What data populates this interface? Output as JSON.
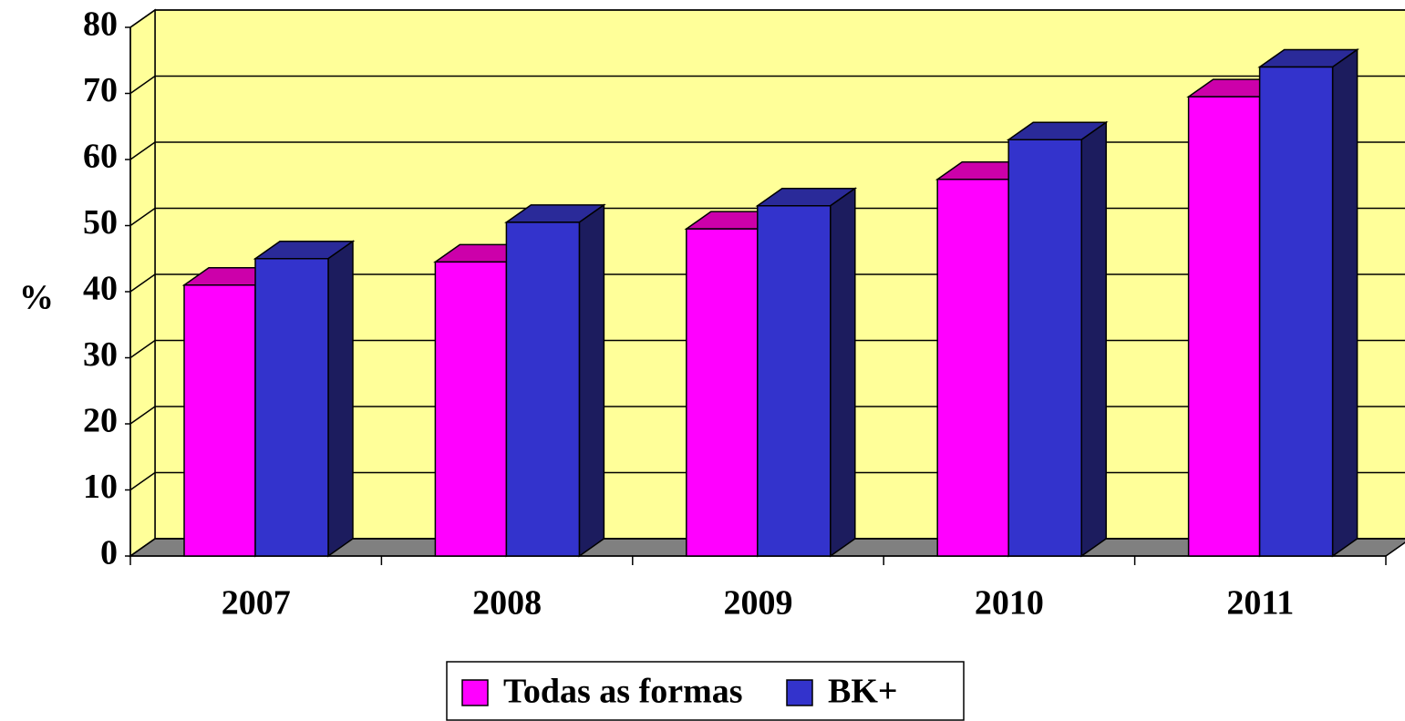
{
  "chart_data": {
    "type": "bar3d",
    "y_label": "%",
    "categories": [
      "2007",
      "2008",
      "2009",
      "2010",
      "2011"
    ],
    "series": [
      {
        "name": "Todas as formas",
        "color": "#ff00ff",
        "values": [
          41,
          44.5,
          49.5,
          57,
          69.5
        ]
      },
      {
        "name": "BK+",
        "color": "#3333cc",
        "values": [
          45,
          50.5,
          53,
          63,
          74
        ]
      }
    ],
    "ylim": [
      0,
      80
    ],
    "yticks": [
      0,
      10,
      20,
      30,
      40,
      50,
      60,
      70,
      80
    ],
    "grid": true,
    "legend": "bottom"
  }
}
